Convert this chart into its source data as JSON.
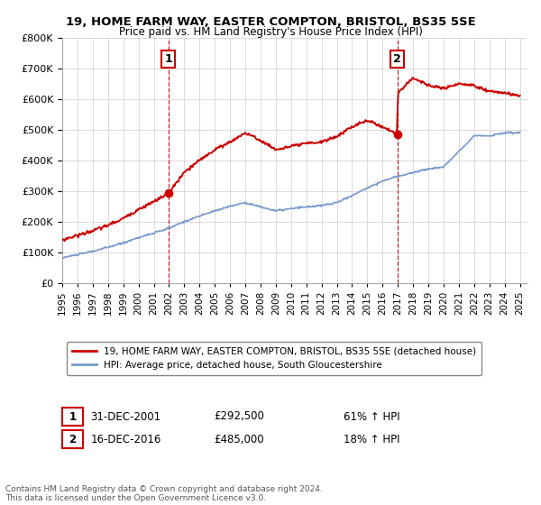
{
  "title1": "19, HOME FARM WAY, EASTER COMPTON, BRISTOL, BS35 5SE",
  "title2": "Price paid vs. HM Land Registry's House Price Index (HPI)",
  "legend_line1": "19, HOME FARM WAY, EASTER COMPTON, BRISTOL, BS35 5SE (detached house)",
  "legend_line2": "HPI: Average price, detached house, South Gloucestershire",
  "annotation1": {
    "label": "1",
    "date": "31-DEC-2001",
    "price": "£292,500",
    "pct": "61% ↑ HPI",
    "x_year": 2001.97,
    "y_val": 292500
  },
  "annotation2": {
    "label": "2",
    "date": "16-DEC-2016",
    "price": "£485,000",
    "pct": "18% ↑ HPI",
    "x_year": 2016.96,
    "y_val": 485000
  },
  "red_line_color": "#cc0000",
  "blue_line_color": "#7799cc",
  "dashed_vline_color": "#cc0000",
  "background_color": "#ffffff",
  "grid_color": "#cccccc",
  "footer": "Contains HM Land Registry data © Crown copyright and database right 2024.\nThis data is licensed under the Open Government Licence v3.0.",
  "ylim": [
    0,
    800000
  ],
  "yticks": [
    0,
    100000,
    200000,
    300000,
    400000,
    500000,
    600000,
    700000,
    800000
  ],
  "xlim_start": 1995.0,
  "xlim_end": 2025.5,
  "hpi_keypoints_x": [
    1995,
    1996,
    1997,
    1998,
    1999,
    2000,
    2001,
    2002,
    2003,
    2004,
    2005,
    2006,
    2007,
    2008,
    2009,
    2010,
    2011,
    2012,
    2013,
    2014,
    2015,
    2016,
    2017,
    2018,
    2019,
    2020,
    2021,
    2022,
    2023,
    2024,
    2025
  ],
  "hpi_keypoints_y": [
    82000,
    92000,
    103000,
    116000,
    130000,
    148000,
    162000,
    178000,
    200000,
    218000,
    235000,
    250000,
    262000,
    248000,
    235000,
    242000,
    248000,
    252000,
    262000,
    285000,
    310000,
    332000,
    348000,
    360000,
    372000,
    378000,
    430000,
    480000,
    480000,
    490000,
    490000
  ],
  "red_keypoints_x": [
    1995,
    1996,
    1997,
    1998,
    1999,
    2000,
    2001,
    2001.97,
    2003,
    2004,
    2005,
    2006,
    2007,
    2008,
    2009,
    2010,
    2011,
    2012,
    2013,
    2014,
    2015,
    2016,
    2016.96,
    2017,
    2018,
    2019,
    2020,
    2021,
    2022,
    2023,
    2024,
    2025
  ],
  "red_keypoints_y": [
    140000,
    155000,
    170000,
    188000,
    210000,
    240000,
    265000,
    292500,
    360000,
    400000,
    435000,
    460000,
    490000,
    465000,
    435000,
    445000,
    455000,
    460000,
    478000,
    510000,
    530000,
    510000,
    485000,
    620000,
    670000,
    645000,
    635000,
    650000,
    645000,
    625000,
    620000,
    610000
  ]
}
